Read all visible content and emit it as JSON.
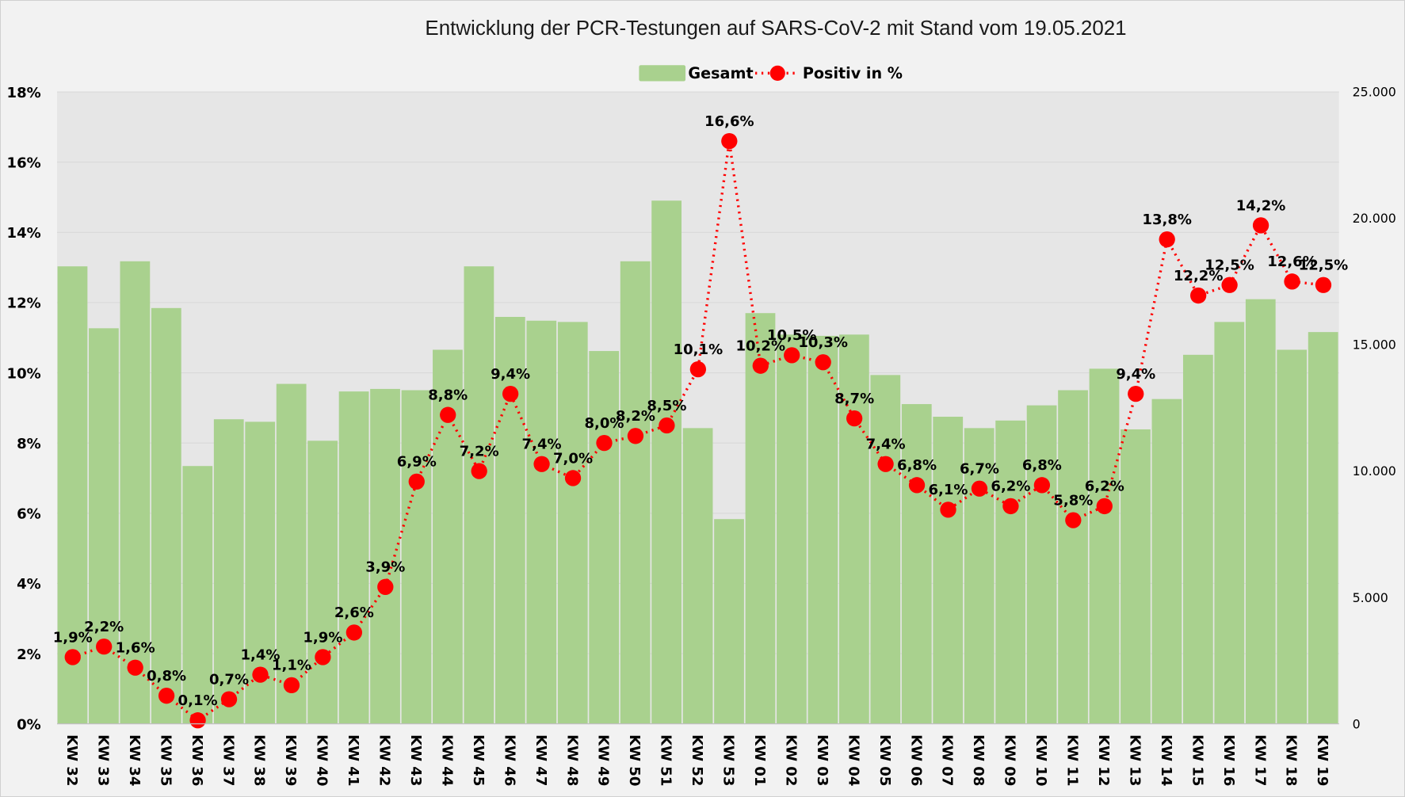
{
  "chart_data": {
    "type": "bar+line",
    "title": "Entwicklung der PCR-Testungen auf SARS-CoV-2 mit Stand vom 19.05.2021",
    "legend_position": "top",
    "grid": true,
    "categories": [
      "KW 32",
      "KW 33",
      "KW 34",
      "KW 35",
      "KW 36",
      "KW 37",
      "KW 38",
      "KW 39",
      "KW 40",
      "KW 41",
      "KW 42",
      "KW 43",
      "KW 44",
      "KW 45",
      "KW 46",
      "KW 47",
      "KW 48",
      "KW 49",
      "KW 50",
      "KW 51",
      "KW 52",
      "KW 53",
      "KW 01",
      "KW 02",
      "KW 03",
      "KW 04",
      "KW 05",
      "KW 06",
      "KW 07",
      "KW 08",
      "KW 09",
      "KW 10",
      "KW 11",
      "KW 12",
      "KW 13",
      "KW 14",
      "KW 15",
      "KW 16",
      "KW 17",
      "KW 18",
      "KW 19"
    ],
    "left_axis": {
      "min": 0,
      "max": 18,
      "step": 2,
      "tick_labels": [
        "0%",
        "2%",
        "4%",
        "6%",
        "8%",
        "10%",
        "12%",
        "14%",
        "16%",
        "18%"
      ]
    },
    "right_axis": {
      "min": 0,
      "max": 25000,
      "step": 5000,
      "tick_labels": [
        "0",
        "5.000",
        "10.000",
        "15.000",
        "20.000",
        "25.000"
      ]
    },
    "series": [
      {
        "name": "Gesamt",
        "type": "bar",
        "axis": "right",
        "color": "#a9d18e",
        "values": [
          18100,
          15650,
          18300,
          16450,
          10200,
          12050,
          11950,
          13450,
          11200,
          13150,
          13250,
          13200,
          14800,
          18100,
          16100,
          15950,
          15900,
          14750,
          18300,
          20700,
          11700,
          8100,
          16250,
          15400,
          15350,
          15400,
          13800,
          12650,
          12150,
          11700,
          12000,
          12600,
          13200,
          14050,
          11650,
          12850,
          14600,
          15900,
          16800,
          14800,
          15500
        ]
      },
      {
        "name": "Positiv in %",
        "type": "line",
        "axis": "left",
        "color": "#ff0000",
        "values": [
          1.9,
          2.2,
          1.6,
          0.8,
          0.1,
          0.7,
          1.4,
          1.1,
          1.9,
          2.6,
          3.9,
          6.9,
          8.8,
          7.2,
          9.4,
          7.4,
          7.0,
          8.0,
          8.2,
          8.5,
          10.1,
          16.6,
          10.2,
          10.5,
          10.3,
          8.7,
          7.4,
          6.8,
          6.1,
          6.7,
          6.2,
          6.8,
          5.8,
          6.2,
          9.4,
          13.8,
          12.2,
          12.5,
          14.2,
          12.6,
          12.5
        ],
        "labels": [
          "1,9%",
          "2,2%",
          "1,6%",
          "0,8%",
          "0,1%",
          "0,7%",
          "1,4%",
          "1,1%",
          "1,9%",
          "2,6%",
          "3,9%",
          "6,9%",
          "8,8%",
          "7,2%",
          "9,4%",
          "7,4%",
          "7,0%",
          "8,0%",
          "8,2%",
          "8,5%",
          "10,1%",
          "16,6%",
          "10,2%",
          "10,5%",
          "10,3%",
          "8,7%",
          "7,4%",
          "6,8%",
          "6,1%",
          "6,7%",
          "6,2%",
          "6,8%",
          "5,8%",
          "6,2%",
          "9,4%",
          "13,8%",
          "12,2%",
          "12,5%",
          "14,2%",
          "12,6%",
          "12,5%"
        ]
      }
    ]
  }
}
